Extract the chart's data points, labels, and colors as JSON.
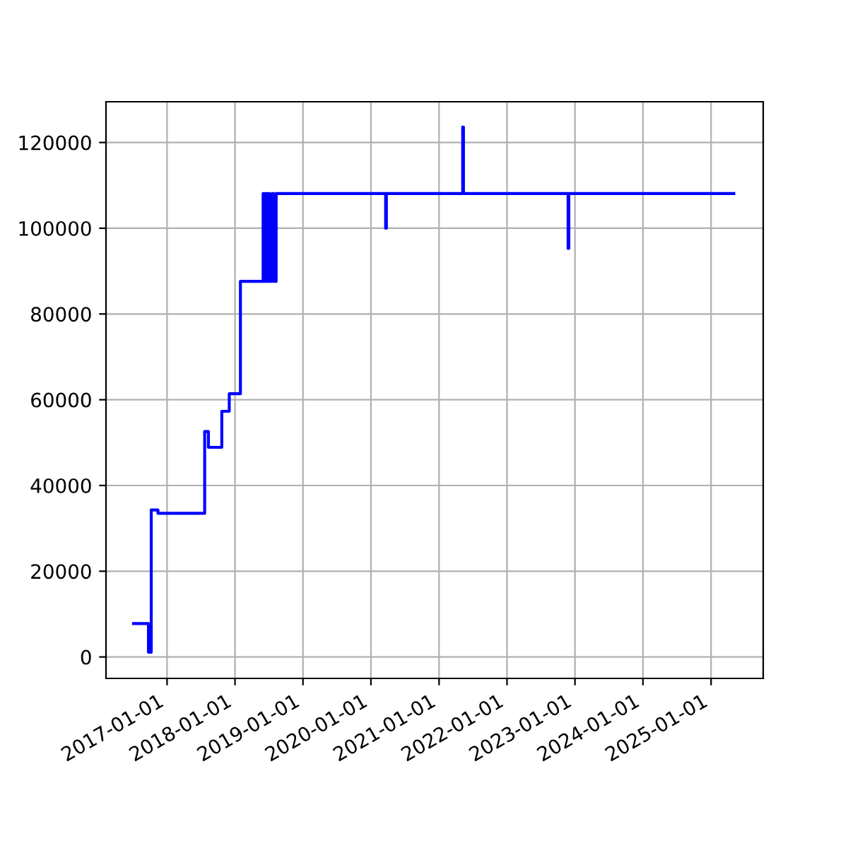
{
  "chart_data": {
    "type": "step",
    "x": [
      "2016-07-05",
      "2016-09-23",
      "2016-10-08",
      "2016-11-13",
      "2017-07-22",
      "2017-08-11",
      "2017-10-22",
      "2017-12-01",
      "2018-01-30",
      "2018-06-01",
      "2018-06-08",
      "2018-06-15",
      "2018-06-22",
      "2018-06-29",
      "2018-07-06",
      "2018-07-20",
      "2018-07-27",
      "2018-08-10",
      "2020-03-20",
      "2020-03-24",
      "2021-05-08",
      "2021-05-12",
      "2022-11-25",
      "2022-11-29",
      "2025-05-03"
    ],
    "series": [
      {
        "color": "#0000ff",
        "values": [
          7800,
          1100,
          34300,
          33500,
          52600,
          48900,
          57300,
          61400,
          87600,
          108100,
          87600,
          108100,
          87600,
          108100,
          87600,
          108100,
          87600,
          108100,
          100000,
          108100,
          123600,
          108100,
          95300,
          108100,
          108100
        ]
      }
    ],
    "xlim": [
      "2016-02-08",
      "2025-10-08"
    ],
    "xticks": [
      {
        "value": "2017-01-01",
        "label": "2017-01-01"
      },
      {
        "value": "2018-01-01",
        "label": "2018-01-01"
      },
      {
        "value": "2019-01-01",
        "label": "2019-01-01"
      },
      {
        "value": "2020-01-01",
        "label": "2020-01-01"
      },
      {
        "value": "2021-01-01",
        "label": "2021-01-01"
      },
      {
        "value": "2022-01-01",
        "label": "2022-01-01"
      },
      {
        "value": "2023-01-01",
        "label": "2023-01-01"
      },
      {
        "value": "2024-01-01",
        "label": "2024-01-01"
      },
      {
        "value": "2025-01-01",
        "label": "2025-01-01"
      }
    ],
    "ylim": [
      -5000,
      129500
    ],
    "yticks": [
      0,
      20000,
      40000,
      60000,
      80000,
      100000,
      120000
    ],
    "grid": true
  }
}
